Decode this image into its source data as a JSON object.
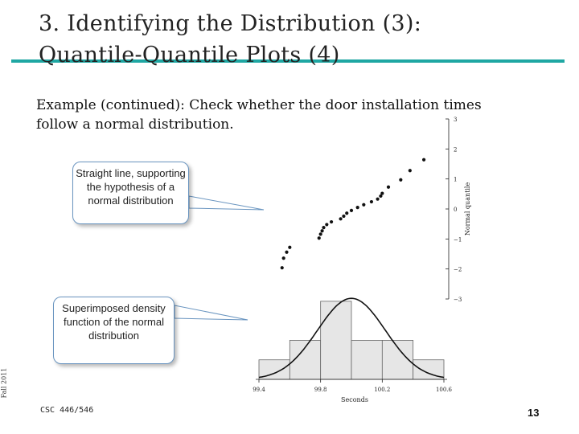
{
  "slide": {
    "title_line1": "3. Identifying the Distribution (3):",
    "title_line2": "Quantile-Quantile Plots (4)",
    "body": "Example (continued): Check whether the door installation times follow a normal distribution.",
    "callout_qq": "Straight line, supporting the hypothesis of a normal distribution",
    "callout_density": "Superimposed density function of the normal distribution",
    "side_label": "Fall 2011",
    "course": "CSC 446/546",
    "page_number": "13"
  },
  "colors": {
    "title_rule": "#1fa7a3",
    "callout_border": "#6a95c0"
  },
  "chart_data": [
    {
      "type": "scatter",
      "title": "",
      "xlabel": "",
      "ylabel": "Normal quantile",
      "ylim": [
        -3,
        3
      ],
      "y_ticks": [
        "3",
        "2",
        "1",
        "0",
        "-1",
        "-2",
        "-3"
      ],
      "points": [
        [
          99.55,
          -1.96
        ],
        [
          99.56,
          -1.64
        ],
        [
          99.58,
          -1.44
        ],
        [
          99.6,
          -1.28
        ],
        [
          99.79,
          -0.97
        ],
        [
          99.8,
          -0.84
        ],
        [
          99.81,
          -0.73
        ],
        [
          99.82,
          -0.62
        ],
        [
          99.84,
          -0.52
        ],
        [
          99.87,
          -0.43
        ],
        [
          99.93,
          -0.33
        ],
        [
          99.95,
          -0.24
        ],
        [
          99.97,
          -0.14
        ],
        [
          100.0,
          -0.05
        ],
        [
          100.04,
          0.05
        ],
        [
          100.08,
          0.14
        ],
        [
          100.13,
          0.24
        ],
        [
          100.17,
          0.33
        ],
        [
          100.19,
          0.43
        ],
        [
          100.2,
          0.52
        ],
        [
          100.24,
          0.73
        ],
        [
          100.32,
          0.97
        ],
        [
          100.38,
          1.28
        ],
        [
          100.47,
          1.64
        ]
      ]
    },
    {
      "type": "bar",
      "title": "",
      "xlabel": "Seconds",
      "ylabel": "",
      "x_ticks": [
        "99.4",
        "99.8",
        "100.2",
        "100.6"
      ],
      "bin_edges": [
        99.4,
        99.6,
        99.8,
        100.0,
        100.2,
        100.4,
        100.6
      ],
      "values": [
        2,
        4,
        8,
        4,
        4,
        2
      ],
      "density_curve": {
        "type": "normal",
        "mean": 100.0,
        "sd": 0.22
      }
    }
  ]
}
